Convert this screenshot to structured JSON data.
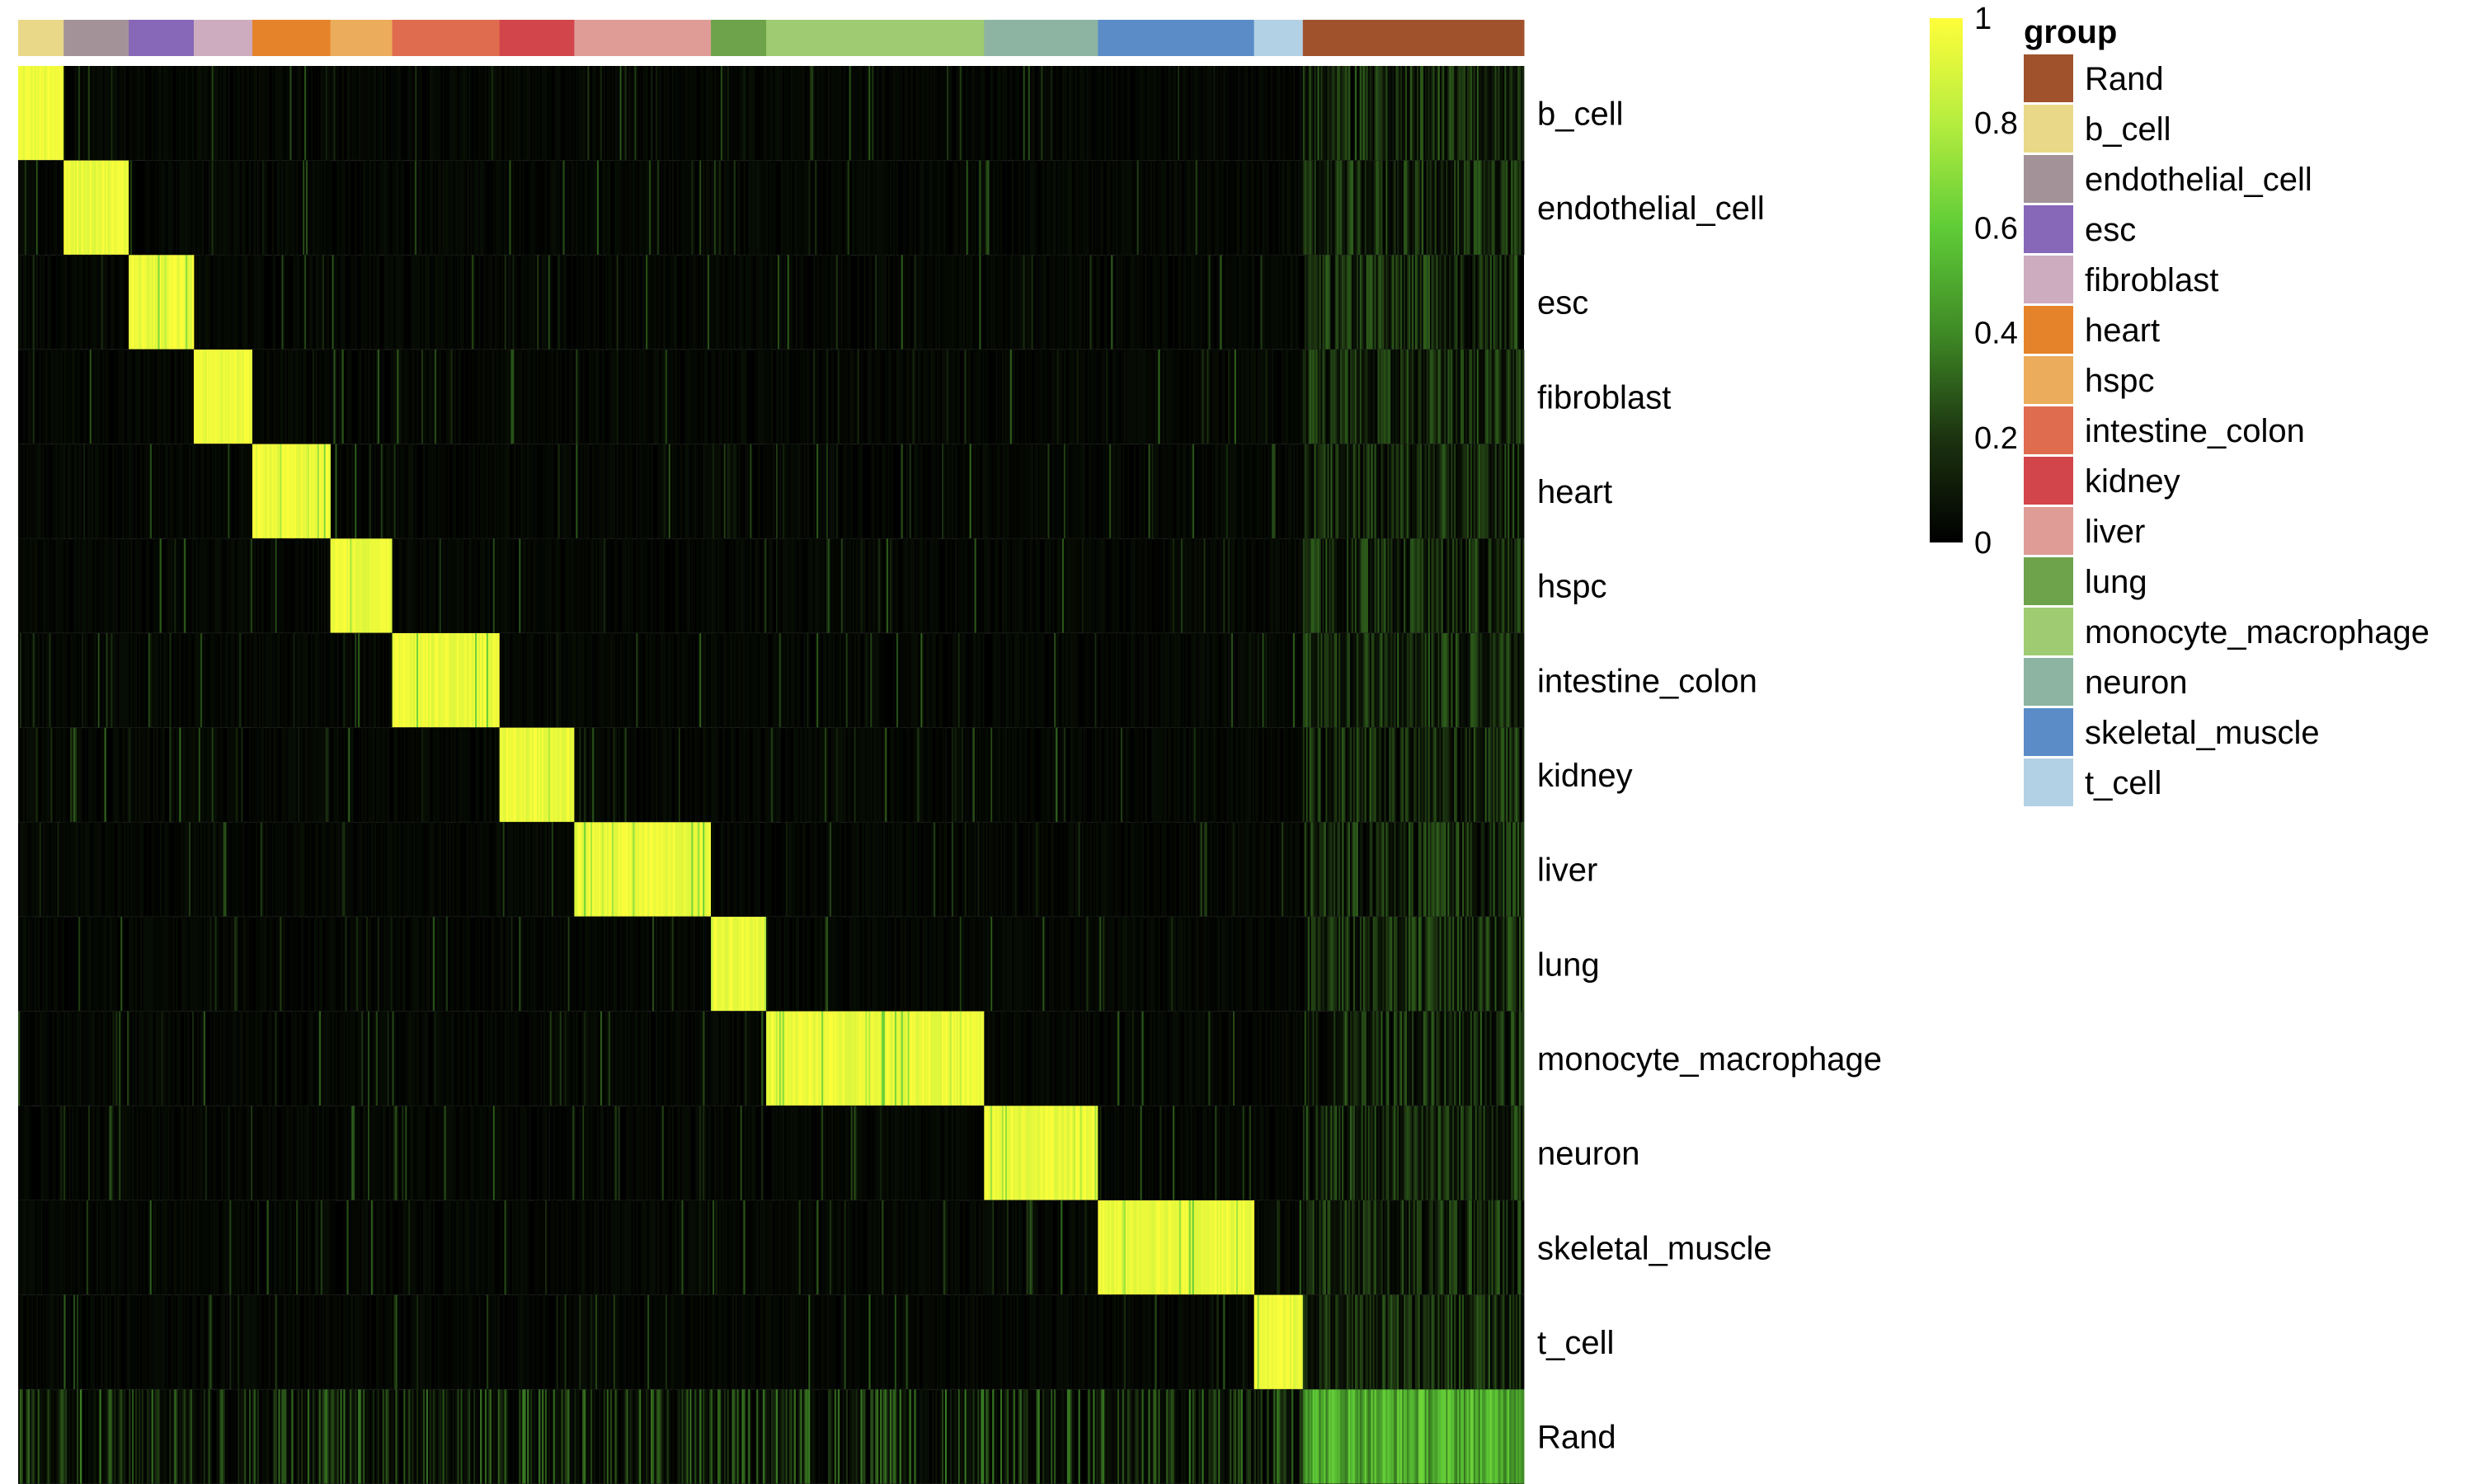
{
  "chart_data": {
    "type": "heatmap",
    "title": "",
    "rows": [
      "b_cell",
      "endothelial_cell",
      "esc",
      "fibroblast",
      "heart",
      "hspc",
      "intestine_colon",
      "kidney",
      "liver",
      "lung",
      "monocyte_macrophage",
      "neuron",
      "skeletal_muscle",
      "t_cell",
      "Rand"
    ],
    "column_groups": [
      {
        "name": "b_cell",
        "n_columns": 28
      },
      {
        "name": "endothelial_cell",
        "n_columns": 40
      },
      {
        "name": "esc",
        "n_columns": 40
      },
      {
        "name": "fibroblast",
        "n_columns": 36
      },
      {
        "name": "heart",
        "n_columns": 48
      },
      {
        "name": "hspc",
        "n_columns": 38
      },
      {
        "name": "intestine_colon",
        "n_columns": 66
      },
      {
        "name": "kidney",
        "n_columns": 46
      },
      {
        "name": "liver",
        "n_columns": 84
      },
      {
        "name": "lung",
        "n_columns": 34
      },
      {
        "name": "monocyte_macrophage",
        "n_columns": 134
      },
      {
        "name": "neuron",
        "n_columns": 70
      },
      {
        "name": "skeletal_muscle",
        "n_columns": 96
      },
      {
        "name": "t_cell",
        "n_columns": 30
      },
      {
        "name": "Rand",
        "n_columns": 136
      }
    ],
    "cell_values": {
      "diagonal_block_mean": 0.95,
      "off_diagonal_mean": 0.05,
      "rand_row_mean_vs_cell_types": 0.12,
      "rand_row_vs_rand_columns_mean": 0.5,
      "rand_columns_vs_cell_type_rows_mean": 0.15
    },
    "color_scale": {
      "min": 0,
      "max": 1,
      "ticks": [
        "1",
        "0.8",
        "0.6",
        "0.4",
        "0.2",
        "0"
      ],
      "tick_values": [
        1,
        0.8,
        0.6,
        0.4,
        0.2,
        0
      ],
      "colors": [
        {
          "value": 0,
          "color": "#000000"
        },
        {
          "value": 0.2,
          "color": "#1c3310"
        },
        {
          "value": 0.4,
          "color": "#3f8a26"
        },
        {
          "value": 0.6,
          "color": "#5fcc37"
        },
        {
          "value": 0.8,
          "color": "#b5ed3f"
        },
        {
          "value": 1,
          "color": "#fffe3a"
        }
      ]
    },
    "legend": {
      "title": "group",
      "placement": "right",
      "entries": [
        {
          "label": "Rand",
          "color": "#a0522d"
        },
        {
          "label": "b_cell",
          "color": "#e9d888"
        },
        {
          "label": "endothelial_cell",
          "color": "#a39399"
        },
        {
          "label": "esc",
          "color": "#8767b8"
        },
        {
          "label": "fibroblast",
          "color": "#cdacc0"
        },
        {
          "label": "heart",
          "color": "#e5832a"
        },
        {
          "label": "hspc",
          "color": "#ebac5c"
        },
        {
          "label": "intestine_colon",
          "color": "#df6c4f"
        },
        {
          "label": "kidney",
          "color": "#d2454a"
        },
        {
          "label": "liver",
          "color": "#df9c96"
        },
        {
          "label": "lung",
          "color": "#6ea24b"
        },
        {
          "label": "monocyte_macrophage",
          "color": "#9fcb72"
        },
        {
          "label": "neuron",
          "color": "#8db4a2"
        },
        {
          "label": "skeletal_muscle",
          "color": "#5b8cc7"
        },
        {
          "label": "t_cell",
          "color": "#b3d1e4"
        }
      ]
    }
  }
}
